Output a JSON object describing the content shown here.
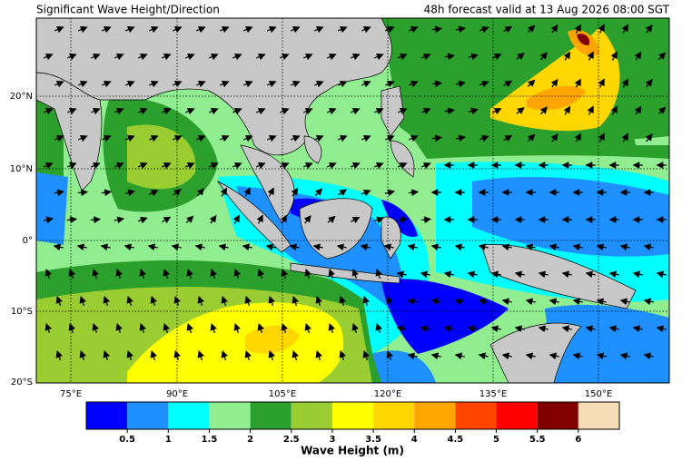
{
  "header": {
    "title": "Significant Wave Height/Direction",
    "valid": "48h forecast valid at 13 Aug 2026 08:00 SGT"
  },
  "map": {
    "lat_labels": [
      "20°N",
      "10°N",
      "0°",
      "10°S",
      "20°S"
    ],
    "lon_labels": [
      "75°E",
      "90°E",
      "105°E",
      "120°E",
      "135°E",
      "150°E"
    ]
  },
  "colorbar": {
    "label": "Wave Height (m)",
    "ticks": [
      0.5,
      1,
      1.5,
      2,
      2.5,
      3,
      3.5,
      4,
      4.5,
      5,
      5.5,
      6
    ],
    "colors": [
      "#0000ff",
      "#1e90ff",
      "#00ffff",
      "#90ee90",
      "#2ca02c",
      "#9acd32",
      "#ffff00",
      "#ffd700",
      "#ffa500",
      "#ff4500",
      "#ff0000",
      "#800000",
      "#f5deb3"
    ]
  }
}
